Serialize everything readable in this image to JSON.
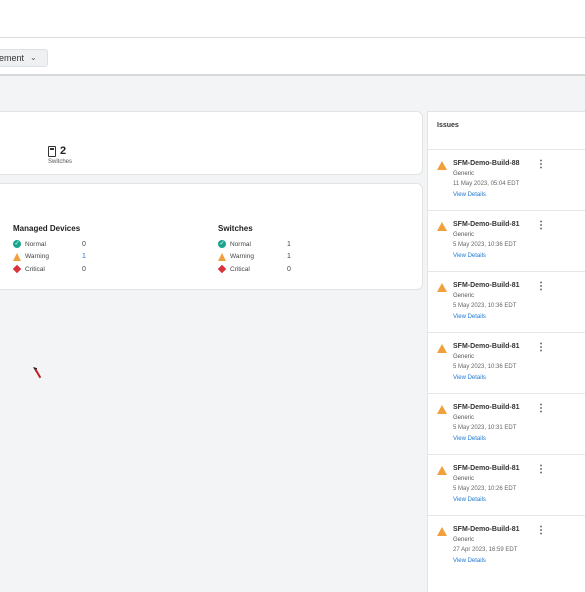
{
  "toolbar": {
    "dropdown_label": "ement"
  },
  "summary": {
    "switch_count": "2",
    "switch_label": "Switches"
  },
  "health": {
    "managed": {
      "title": "Managed Devices",
      "rows": [
        {
          "label": "Normal",
          "count": "0"
        },
        {
          "label": "Warning",
          "count": "1"
        },
        {
          "label": "Critical",
          "count": "0"
        }
      ]
    },
    "switches": {
      "title": "Switches",
      "rows": [
        {
          "label": "Normal",
          "count": "1"
        },
        {
          "label": "Warning",
          "count": "1"
        },
        {
          "label": "Critical",
          "count": "0"
        }
      ]
    }
  },
  "issues": {
    "title": "Issues",
    "items": [
      {
        "name": "SFM-Demo-Build-88",
        "type": "Generic",
        "date": "11 May 2023, 05:04 EDT",
        "link": "View Details"
      },
      {
        "name": "SFM-Demo-Build-81",
        "type": "Generic",
        "date": "5 May 2023, 10:36 EDT",
        "link": "View Details"
      },
      {
        "name": "SFM-Demo-Build-81",
        "type": "Generic",
        "date": "5 May 2023, 10:36 EDT",
        "link": "View Details"
      },
      {
        "name": "SFM-Demo-Build-81",
        "type": "Generic",
        "date": "5 May 2023, 10:36 EDT",
        "link": "View Details"
      },
      {
        "name": "SFM-Demo-Build-81",
        "type": "Generic",
        "date": "5 May 2023, 10:31 EDT",
        "link": "View Details"
      },
      {
        "name": "SFM-Demo-Build-81",
        "type": "Generic",
        "date": "5 May 2023, 10:26 EDT",
        "link": "View Details"
      },
      {
        "name": "SFM-Demo-Build-81",
        "type": "Generic",
        "date": "27 Apr 2023, 16:59 EDT",
        "link": "View Details"
      }
    ]
  },
  "colors": {
    "normal": "#1aa58f",
    "warning": "#f0a03c",
    "critical": "#d6333a",
    "link": "#1f78d1"
  },
  "icons": {
    "status_normal": "check-circle-icon",
    "status_warning": "warning-triangle-icon",
    "status_critical": "critical-diamond-icon",
    "switch": "switch-device-icon",
    "more": "kebab-menu-icon"
  }
}
